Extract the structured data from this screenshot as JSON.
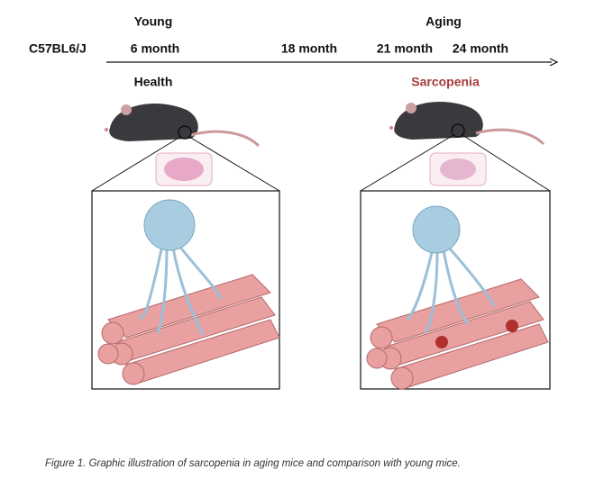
{
  "header": {
    "young": "Young",
    "aging": "Aging"
  },
  "timeline": {
    "strain": "C57BL6/J",
    "points": [
      "6 month",
      "18 month",
      "21 month",
      "24 month"
    ]
  },
  "panels": [
    {
      "label": "Health"
    },
    {
      "label": "Sarcopenia"
    }
  ],
  "caption": "Figure 1. Graphic illustration of sarcopenia in aging mice and comparison with young mice."
}
